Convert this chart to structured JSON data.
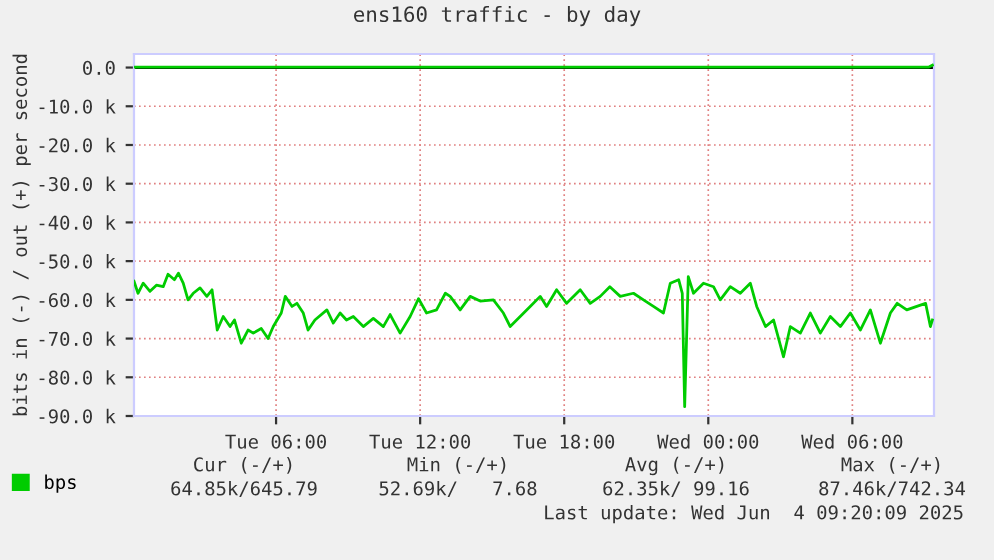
{
  "chart_data": {
    "type": "line",
    "title": "ens160 traffic - by day",
    "ylabel": "bits in (-) / out (+) per second",
    "xlim": [
      "2025-06-03T00:05",
      "2025-06-04T09:24"
    ],
    "ylim": [
      -90,
      3.5
    ],
    "xticks": [
      {
        "value": "2025-06-03T06:00",
        "label": "Tue 06:00"
      },
      {
        "value": "2025-06-03T12:00",
        "label": "Tue 12:00"
      },
      {
        "value": "2025-06-03T18:00",
        "label": "Tue 18:00"
      },
      {
        "value": "2025-06-04T00:00",
        "label": "Wed 00:00"
      },
      {
        "value": "2025-06-04T06:00",
        "label": "Wed 06:00"
      }
    ],
    "yticks": [
      {
        "value": 0,
        "label": "0.0"
      },
      {
        "value": -10,
        "label": "-10.0 k"
      },
      {
        "value": -20,
        "label": "-20.0 k"
      },
      {
        "value": -30,
        "label": "-30.0 k"
      },
      {
        "value": -40,
        "label": "-40.0 k"
      },
      {
        "value": -50,
        "label": "-50.0 k"
      },
      {
        "value": -60,
        "label": "-60.0 k"
      },
      {
        "value": -70,
        "label": "-70.0 k"
      },
      {
        "value": -80,
        "label": "-80.0 k"
      },
      {
        "value": -90,
        "label": "-90.0 k"
      }
    ],
    "grid": true,
    "legend": "bottom left",
    "marker": "none",
    "line_style": "solid",
    "ref_lines": [
      {
        "axis": "y",
        "value": 0,
        "color": "#000000"
      }
    ],
    "series": [
      {
        "name": "bps",
        "color": "#00cc00",
        "x": [
          "2025-06-03T00:05",
          "2025-06-03T00:15",
          "2025-06-03T00:28",
          "2025-06-03T00:45",
          "2025-06-03T01:01",
          "2025-06-03T01:18",
          "2025-06-03T01:30",
          "2025-06-03T01:46",
          "2025-06-03T01:56",
          "2025-06-03T02:08",
          "2025-06-03T02:20",
          "2025-06-03T02:33",
          "2025-06-03T02:50",
          "2025-06-03T03:07",
          "2025-06-03T03:20",
          "2025-06-03T03:33",
          "2025-06-03T03:48",
          "2025-06-03T04:05",
          "2025-06-03T04:16",
          "2025-06-03T04:33",
          "2025-06-03T04:50",
          "2025-06-03T05:03",
          "2025-06-03T05:23",
          "2025-06-03T05:40",
          "2025-06-03T05:53",
          "2025-06-03T06:13",
          "2025-06-03T06:23",
          "2025-06-03T06:40",
          "2025-06-03T06:52",
          "2025-06-03T07:08",
          "2025-06-03T07:20",
          "2025-06-03T07:37",
          "2025-06-03T08:07",
          "2025-06-03T08:23",
          "2025-06-03T08:40",
          "2025-06-03T08:56",
          "2025-06-03T09:13",
          "2025-06-03T09:38",
          "2025-06-03T10:03",
          "2025-06-03T10:28",
          "2025-06-03T10:45",
          "2025-06-03T11:10",
          "2025-06-03T11:35",
          "2025-06-03T11:56",
          "2025-06-03T12:16",
          "2025-06-03T12:41",
          "2025-06-03T13:03",
          "2025-06-03T13:15",
          "2025-06-03T13:40",
          "2025-06-03T14:05",
          "2025-06-03T14:30",
          "2025-06-03T15:03",
          "2025-06-03T15:28",
          "2025-06-03T15:45",
          "2025-06-03T16:10",
          "2025-06-03T16:35",
          "2025-06-03T17:00",
          "2025-06-03T17:16",
          "2025-06-03T17:41",
          "2025-06-03T18:06",
          "2025-06-03T18:40",
          "2025-06-03T19:05",
          "2025-06-03T19:30",
          "2025-06-03T19:54",
          "2025-06-03T20:20",
          "2025-06-03T20:53",
          "2025-06-03T21:18",
          "2025-06-03T21:43",
          "2025-06-03T22:08",
          "2025-06-03T22:25",
          "2025-06-03T22:46",
          "2025-06-03T22:55",
          "2025-06-03T23:01",
          "2025-06-03T23:10",
          "2025-06-03T23:23",
          "2025-06-03T23:48",
          "2025-06-04T00:13",
          "2025-06-04T00:30",
          "2025-06-04T00:55",
          "2025-06-04T01:20",
          "2025-06-04T01:45",
          "2025-06-04T02:01",
          "2025-06-04T02:23",
          "2025-06-04T02:43",
          "2025-06-04T03:08",
          "2025-06-04T03:25",
          "2025-06-04T03:50",
          "2025-06-04T04:15",
          "2025-06-04T04:40",
          "2025-06-04T05:05",
          "2025-06-04T05:30",
          "2025-06-04T05:55",
          "2025-06-04T06:20",
          "2025-06-04T06:45",
          "2025-06-04T07:10",
          "2025-06-04T07:35",
          "2025-06-04T07:52",
          "2025-06-04T08:16",
          "2025-06-04T08:41",
          "2025-06-04T09:03",
          "2025-06-04T09:15",
          "2025-06-04T09:20"
        ],
        "values": [
          -55.2,
          -58.3,
          -55.7,
          -57.8,
          -56.2,
          -56.6,
          -53.4,
          -54.8,
          -53.1,
          -55.7,
          -60,
          -58.3,
          -56.9,
          -59.1,
          -57.4,
          -67.8,
          -64.3,
          -66.9,
          -65.2,
          -71.2,
          -67.8,
          -68.6,
          -67.4,
          -70,
          -66.9,
          -63.4,
          -59.1,
          -61.7,
          -60.9,
          -63.4,
          -67.8,
          -65.2,
          -62.6,
          -66,
          -63.4,
          -65.2,
          -64.3,
          -66.9,
          -64.8,
          -66.9,
          -63.8,
          -68.6,
          -64.3,
          -59.7,
          -63.4,
          -62.6,
          -58.3,
          -59.1,
          -62.6,
          -59.1,
          -60.3,
          -60,
          -63.4,
          -66.9,
          -64.3,
          -61.7,
          -59.1,
          -61.7,
          -57.4,
          -60.9,
          -57.4,
          -60.9,
          -59.1,
          -56.6,
          -59.1,
          -58.3,
          -60,
          -61.7,
          -63.4,
          -55.7,
          -54.8,
          -58.3,
          -87.6,
          -54,
          -58.3,
          -55.7,
          -56.6,
          -60,
          -56.6,
          -58.3,
          -55.7,
          -61.7,
          -66.9,
          -65.2,
          -74.7,
          -66.9,
          -68.6,
          -63.4,
          -68.6,
          -64.3,
          -66.9,
          -63.4,
          -67.8,
          -62.6,
          -71.2,
          -63.4,
          -60.9,
          -62.6,
          -61.7,
          -60.9,
          -66.9,
          -65.2
        ]
      },
      {
        "color": "#00cc00",
        "x": [
          "2025-06-03T00:05",
          "2025-06-03T05:00",
          "2025-06-03T10:00",
          "2025-06-03T15:00",
          "2025-06-03T20:00",
          "2025-06-04T01:00",
          "2025-06-04T06:00",
          "2025-06-04T09:10",
          "2025-06-04T09:20"
        ],
        "values": [
          0.1,
          0.1,
          0.1,
          0.1,
          0.1,
          0.1,
          0.1,
          0.1,
          0.6
        ]
      }
    ],
    "annotations": [
      "Cur (-/+)",
      "Min (-/+)",
      "Avg (-/+)",
      "Max (-/+)",
      "64.85k/645.79",
      "52.69k/   7.68",
      "62.35k/ 99.16",
      "87.46k/742.34",
      "Last update: Wed Jun  4 09:20:09 2025"
    ]
  }
}
